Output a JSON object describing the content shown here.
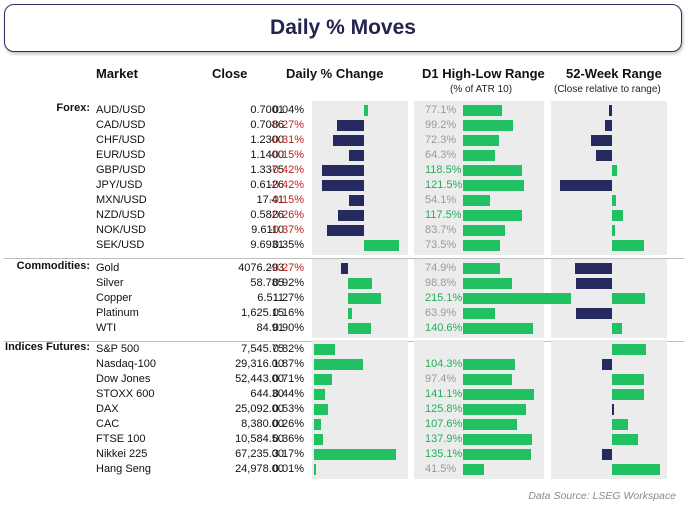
{
  "title": "Daily % Moves",
  "headers": {
    "market": "Market",
    "close": "Close",
    "change": "Daily % Change",
    "range": "D1 High-Low Range",
    "range_sub": "(% of ATR 10)",
    "week52": "52-Week Range",
    "week52_sub": "(Close relative to range)"
  },
  "source": "Data Source: LSEG Workspace",
  "colors": {
    "positive": "#21c063",
    "negative": "#262a5e",
    "neg_text": "#c0201e",
    "hi_range": "#1eb05a",
    "lo_range": "#9a9a9a",
    "panel": "#ececec"
  },
  "chart_data": {
    "type": "table",
    "groups": [
      {
        "name": "Forex:",
        "rows": [
          {
            "market": "AUD/USD",
            "close": "0.7001",
            "change": "0.04%",
            "change_value": 0.04,
            "range": "77.1%",
            "range_value": 77.1,
            "week52": 0.94
          },
          {
            "market": "CAD/USD",
            "close": "0.7086",
            "change": "-0.27%",
            "change_value": -0.27,
            "range": "99.2%",
            "range_value": 99.2,
            "week52": 0.87
          },
          {
            "market": "CHF/USD",
            "close": "1.2300",
            "change": "-0.31%",
            "change_value": -0.31,
            "range": "72.3%",
            "range_value": 72.3,
            "week52": 0.6
          },
          {
            "market": "EUR/USD",
            "close": "1.1400",
            "change": "-0.15%",
            "change_value": -0.15,
            "range": "64.3%",
            "range_value": 64.3,
            "week52": 0.7
          },
          {
            "market": "GBP/USD",
            "close": "1.3375",
            "change": "-0.42%",
            "change_value": -0.42,
            "range": "118.5%",
            "range_value": 118.5,
            "week52": 1.09
          },
          {
            "market": "JPY/USD",
            "close": "0.6126",
            "change": "-0.42%",
            "change_value": -0.42,
            "range": "121.5%",
            "range_value": 121.5,
            "week52": 0.0
          },
          {
            "market": "MXN/USD",
            "close": "17.41",
            "change": "-0.15%",
            "change_value": -0.15,
            "range": "54.1%",
            "range_value": 54.1,
            "week52": 1.08
          },
          {
            "market": "NZD/USD",
            "close": "0.5826",
            "change": "-0.26%",
            "change_value": -0.26,
            "range": "117.5%",
            "range_value": 117.5,
            "week52": 1.22
          },
          {
            "market": "NOK/USD",
            "close": "9.6110",
            "change": "-0.37%",
            "change_value": -0.37,
            "range": "83.7%",
            "range_value": 83.7,
            "week52": 1.05
          },
          {
            "market": "SEK/USD",
            "close": "9.6931",
            "change": "0.35%",
            "change_value": 0.35,
            "range": "73.5%",
            "range_value": 73.5,
            "week52": 1.62
          }
        ]
      },
      {
        "name": "Commodities:",
        "rows": [
          {
            "market": "Gold",
            "close": "4076.293",
            "change": "-0.27%",
            "change_value": -0.27,
            "range": "74.9%",
            "range_value": 74.9,
            "week52": 0.28
          },
          {
            "market": "Silver",
            "close": "58.785",
            "change": "0.92%",
            "change_value": 0.92,
            "range": "98.8%",
            "range_value": 98.8,
            "week52": 0.3
          },
          {
            "market": "Copper",
            "close": "6.511",
            "change": "1.27%",
            "change_value": 1.27,
            "range": "215.1%",
            "range_value": 215.1,
            "week52": 1.63
          },
          {
            "market": "Platinum",
            "close": "1,625.15",
            "change": "0.16%",
            "change_value": 0.16,
            "range": "63.9%",
            "range_value": 63.9,
            "week52": 0.3
          },
          {
            "market": "WTI",
            "close": "84.91",
            "change": "0.90%",
            "change_value": 0.9,
            "range": "140.6%",
            "range_value": 140.6,
            "week52": 1.2
          }
        ]
      },
      {
        "name": "Indices Futures:",
        "rows": [
          {
            "market": "S&P 500",
            "close": "7,545.75",
            "change": "0.82%",
            "change_value": 0.82,
            "range": "",
            "range_value": null,
            "week52": 1.65
          },
          {
            "market": "Nasdaq-100",
            "close": "29,316.00",
            "change": "1.87%",
            "change_value": 1.87,
            "range": "104.3%",
            "range_value": 104.3,
            "week52": 0.8
          },
          {
            "market": "Dow Jones",
            "close": "52,443.00",
            "change": "0.71%",
            "change_value": 0.71,
            "range": "97.4%",
            "range_value": 97.4,
            "week52": 1.62
          },
          {
            "market": "STOXX 600",
            "close": "644.30",
            "change": "0.44%",
            "change_value": 0.44,
            "range": "141.1%",
            "range_value": 141.1,
            "week52": 1.62
          },
          {
            "market": "DAX",
            "close": "25,092.00",
            "change": "0.53%",
            "change_value": 0.53,
            "range": "125.8%",
            "range_value": 125.8,
            "week52": 1.03
          },
          {
            "market": "CAC",
            "close": "8,380.00",
            "change": "0.26%",
            "change_value": 0.26,
            "range": "107.6%",
            "range_value": 107.6,
            "week52": 1.3
          },
          {
            "market": "FTSE 100",
            "close": "10,584.50",
            "change": "0.36%",
            "change_value": 0.36,
            "range": "137.9%",
            "range_value": 137.9,
            "week52": 1.5
          },
          {
            "market": "Nikkei 225",
            "close": "67,235.00",
            "change": "3.17%",
            "change_value": 3.17,
            "range": "135.1%",
            "range_value": 135.1,
            "week52": 0.8
          },
          {
            "market": "Hang Seng",
            "close": "24,978.00",
            "change": "0.01%",
            "change_value": 0.01,
            "range": "41.5%",
            "range_value": 41.5,
            "week52": 1.93
          }
        ]
      }
    ]
  }
}
